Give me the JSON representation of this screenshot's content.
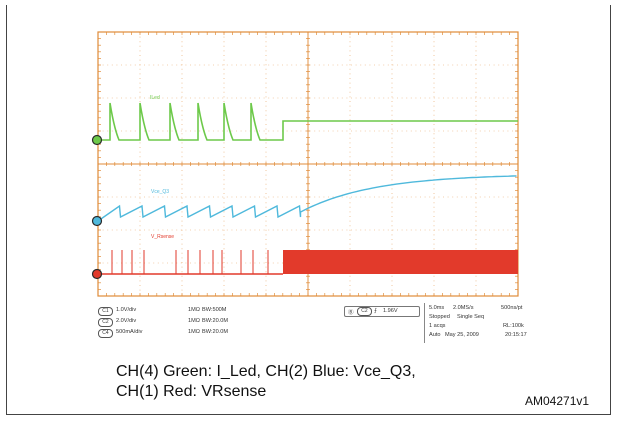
{
  "scope": {
    "colors": {
      "grid": "#e08b38",
      "green": "#6dc94a",
      "blue": "#4fb9dc",
      "red": "#e23a2b",
      "marker_outline": "#2a2a2a"
    },
    "trace_labels": {
      "green": "ILed",
      "blue": "Vce_Q3",
      "red": "V_Rsense"
    }
  },
  "status": {
    "channels": [
      {
        "tag": "C1",
        "scale": "1.0V/div",
        "impedance": "1MΩ",
        "bw": "BW:500M"
      },
      {
        "tag": "C2",
        "scale": "2.0V/div",
        "impedance": "1MΩ",
        "bw": "BW:20.0M"
      },
      {
        "tag": "C4",
        "scale": "500mA/div",
        "impedance": "1MΩ",
        "bw": "BW:20.0M"
      }
    ],
    "trigger": {
      "tag": "C2",
      "level": "1.96V"
    },
    "acquisition": {
      "timebase": "5.0ms",
      "sample_rate": "2.0MS/s",
      "resolution": "500ns/pt",
      "state": "Stopped",
      "mode": "Single Seq",
      "acqs": "1 acqs",
      "record_length": "RL:100k",
      "trigger_mode": "Auto",
      "date": "May 25, 2009",
      "time": "20:15:17"
    }
  },
  "caption": {
    "line1": "CH(4) Green: I_Led,  CH(2) Blue:  Vce_Q3,",
    "line2": "CH(1) Red: VRsense"
  },
  "figure_code": "AM04271v1"
}
